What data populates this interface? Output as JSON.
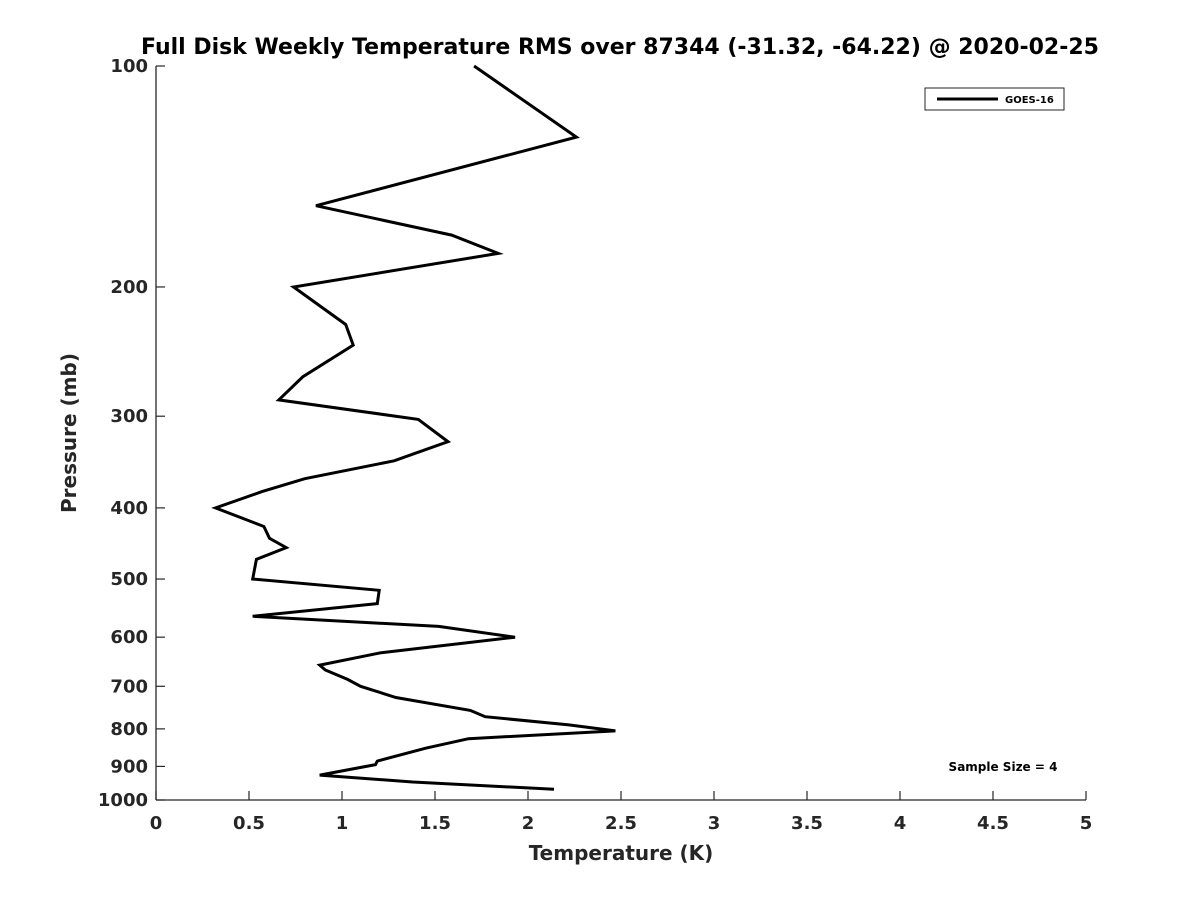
{
  "chart_data": {
    "type": "line",
    "title": "Full Disk Weekly Temperature RMS over 87344 (-31.32, -64.22) @ 2020-02-25",
    "xlabel": "Temperature (K)",
    "ylabel": "Pressure (mb)",
    "xlim": [
      0,
      5
    ],
    "ylim": [
      1000,
      100
    ],
    "y_scale": "log",
    "y_reversed": true,
    "grid": false,
    "legend_position": "top-right",
    "x_ticks": [
      "0",
      "0.5",
      "1",
      "1.5",
      "2",
      "2.5",
      "3",
      "3.5",
      "4",
      "4.5",
      "5"
    ],
    "y_ticks": [
      "100",
      "200",
      "300",
      "400",
      "500",
      "600",
      "700",
      "800",
      "900",
      "1000"
    ],
    "series": [
      {
        "name": "GOES-16",
        "color": "#000000",
        "points": [
          [
            1.71,
            100
          ],
          [
            2.26,
            125
          ],
          [
            0.86,
            155
          ],
          [
            1.59,
            170
          ],
          [
            1.84,
            180
          ],
          [
            0.74,
            200
          ],
          [
            1.02,
            225
          ],
          [
            1.06,
            240
          ],
          [
            0.79,
            265
          ],
          [
            0.66,
            285
          ],
          [
            1.41,
            303
          ],
          [
            1.57,
            325
          ],
          [
            1.28,
            345
          ],
          [
            0.8,
            365
          ],
          [
            0.57,
            380
          ],
          [
            0.32,
            400
          ],
          [
            0.58,
            424
          ],
          [
            0.61,
            440
          ],
          [
            0.7,
            453
          ],
          [
            0.54,
            470
          ],
          [
            0.52,
            500
          ],
          [
            1.2,
            518
          ],
          [
            1.19,
            540
          ],
          [
            0.52,
            562
          ],
          [
            1.52,
            580
          ],
          [
            1.93,
            600
          ],
          [
            1.21,
            630
          ],
          [
            0.88,
            655
          ],
          [
            0.91,
            665
          ],
          [
            1.03,
            685
          ],
          [
            1.1,
            700
          ],
          [
            1.29,
            725
          ],
          [
            1.69,
            755
          ],
          [
            1.77,
            770
          ],
          [
            2.22,
            790
          ],
          [
            2.47,
            805
          ],
          [
            1.68,
            825
          ],
          [
            1.45,
            850
          ],
          [
            1.19,
            885
          ],
          [
            1.18,
            895
          ],
          [
            0.88,
            925
          ],
          [
            1.38,
            945
          ],
          [
            2.14,
            967
          ]
        ]
      }
    ],
    "annotation": "Sample Size = 4"
  }
}
